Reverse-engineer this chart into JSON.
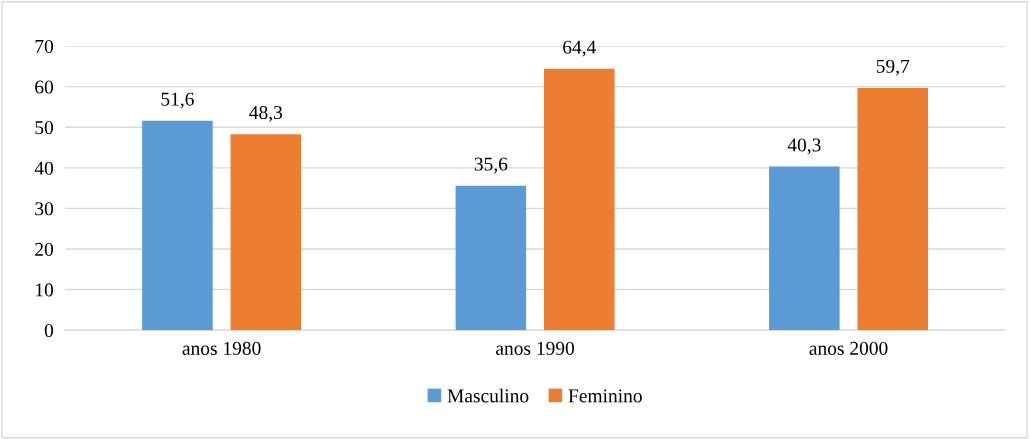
{
  "chart_data": {
    "type": "bar",
    "categories": [
      "anos 1980",
      "anos 1990",
      "anos 2000"
    ],
    "series": [
      {
        "name": "Masculino",
        "color": "#5b9bd5",
        "values": [
          51.6,
          35.6,
          40.3
        ],
        "value_labels": [
          "51,6",
          "35,6",
          "40,3"
        ]
      },
      {
        "name": "Feminino",
        "color": "#ed7d31",
        "values": [
          48.3,
          64.4,
          59.7
        ],
        "value_labels": [
          "48,3",
          "64,4",
          "59,7"
        ]
      }
    ],
    "ylim": [
      0,
      70
    ],
    "yticks": [
      0,
      10,
      20,
      30,
      40,
      50,
      60,
      70
    ],
    "grid": "y",
    "legend": "bottom"
  }
}
